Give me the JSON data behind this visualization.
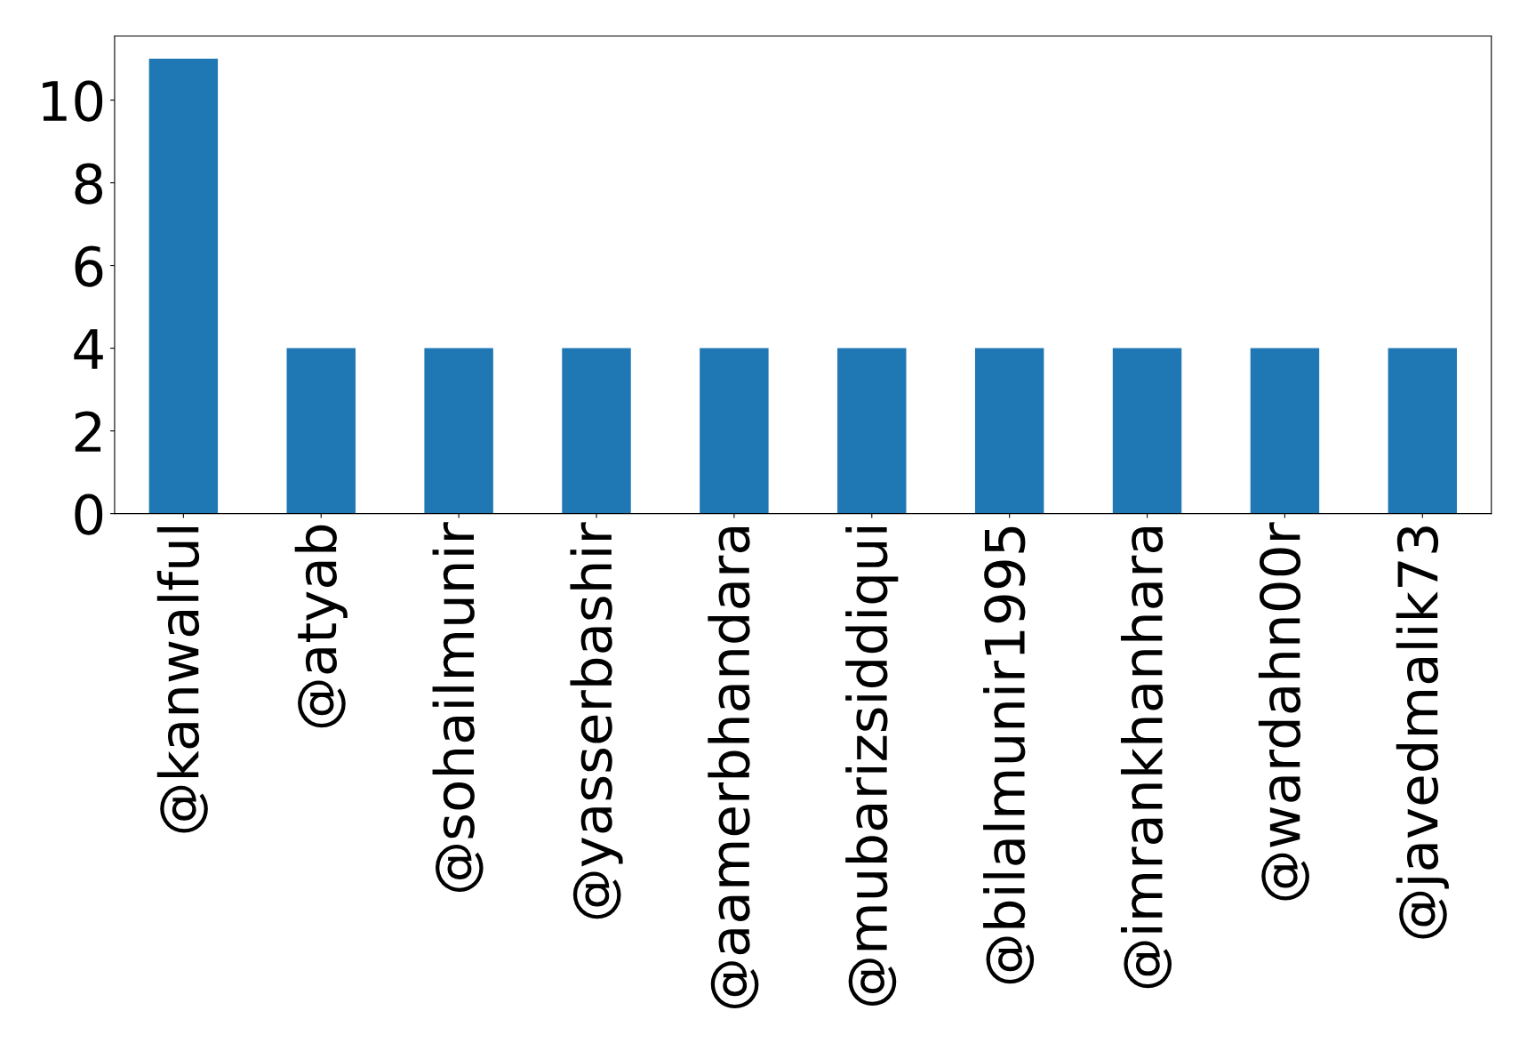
{
  "chart_data": {
    "type": "bar",
    "categories": [
      "@kanwalful",
      "@atyab",
      "@sohailmunir",
      "@yasserbashir",
      "@aamerbhandara",
      "@mubarizsiddiqui",
      "@bilalmunir1995",
      "@imrankhanhara",
      "@wardahn00r",
      "@javedmalik73"
    ],
    "values": [
      11,
      4,
      4,
      4,
      4,
      4,
      4,
      4,
      4,
      4
    ],
    "color": "#1f77b4",
    "ylim": [
      0,
      11.55
    ],
    "yticks": [
      0,
      2,
      4,
      6,
      8,
      10
    ],
    "grid": false
  }
}
